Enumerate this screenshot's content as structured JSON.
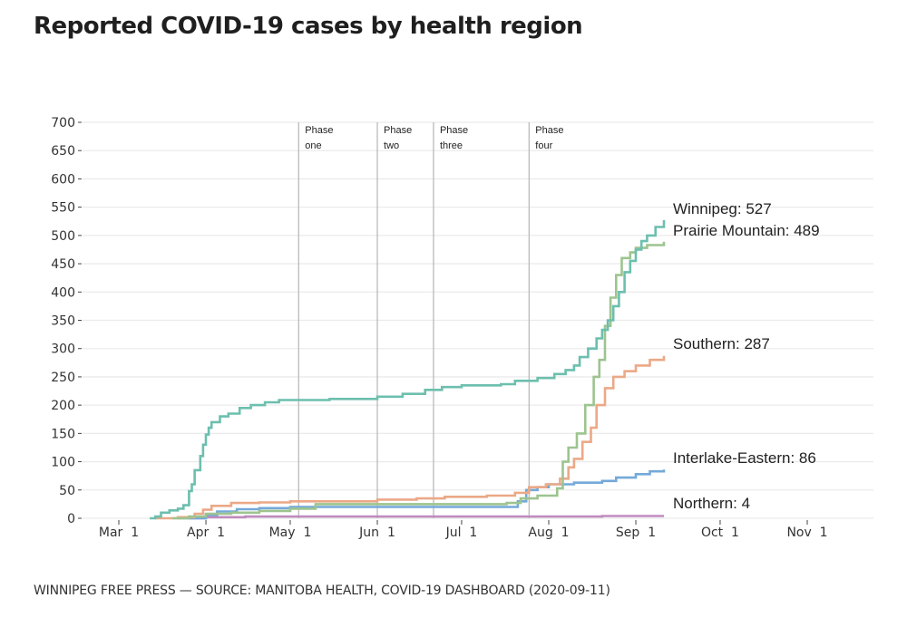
{
  "title": "Reported COVID-19 cases by health region",
  "source": "WINNIPEG FREE PRESS — SOURCE: MANITOBA HEALTH, COVID-19 DASHBOARD (2020-09-11)",
  "chart_data": {
    "type": "line",
    "title": "Reported COVID-19 cases by health region",
    "xlabel": "",
    "ylabel": "",
    "x_type": "date",
    "xlim": [
      "2020-02-20",
      "2020-11-24"
    ],
    "ylim": [
      0,
      700
    ],
    "yticks": [
      0,
      50,
      100,
      150,
      200,
      250,
      300,
      350,
      400,
      450,
      500,
      550,
      600,
      650,
      700
    ],
    "xticks": [
      {
        "date": "2020-03-01",
        "label": "Mar 1"
      },
      {
        "date": "2020-04-01",
        "label": "Apr 1"
      },
      {
        "date": "2020-05-01",
        "label": "May 1"
      },
      {
        "date": "2020-06-01",
        "label": "Jun 1"
      },
      {
        "date": "2020-07-01",
        "label": "Jul 1"
      },
      {
        "date": "2020-08-01",
        "label": "Aug 1"
      },
      {
        "date": "2020-09-01",
        "label": "Sep 1"
      },
      {
        "date": "2020-10-01",
        "label": "Oct 1"
      },
      {
        "date": "2020-11-01",
        "label": "Nov 1"
      }
    ],
    "grid": true,
    "step": true,
    "annotations": [
      {
        "date": "2020-05-04",
        "label": [
          "Phase",
          "one"
        ]
      },
      {
        "date": "2020-06-01",
        "label": [
          "Phase",
          "two"
        ]
      },
      {
        "date": "2020-06-21",
        "label": [
          "Phase",
          "three"
        ]
      },
      {
        "date": "2020-07-25",
        "label": [
          "Phase",
          "four"
        ]
      }
    ],
    "series": [
      {
        "name": "Winnipeg",
        "label": "Winnipeg: 527",
        "color": "#6cbfae",
        "points": [
          [
            "2020-03-12",
            0
          ],
          [
            "2020-03-14",
            3
          ],
          [
            "2020-03-16",
            10
          ],
          [
            "2020-03-19",
            14
          ],
          [
            "2020-03-22",
            17
          ],
          [
            "2020-03-24",
            23
          ],
          [
            "2020-03-26",
            48
          ],
          [
            "2020-03-27",
            60
          ],
          [
            "2020-03-28",
            85
          ],
          [
            "2020-03-30",
            110
          ],
          [
            "2020-03-31",
            130
          ],
          [
            "2020-04-01",
            148
          ],
          [
            "2020-04-02",
            160
          ],
          [
            "2020-04-03",
            170
          ],
          [
            "2020-04-06",
            180
          ],
          [
            "2020-04-09",
            185
          ],
          [
            "2020-04-13",
            195
          ],
          [
            "2020-04-17",
            200
          ],
          [
            "2020-04-22",
            205
          ],
          [
            "2020-04-27",
            209
          ],
          [
            "2020-05-04",
            209
          ],
          [
            "2020-05-15",
            211
          ],
          [
            "2020-06-01",
            215
          ],
          [
            "2020-06-10",
            220
          ],
          [
            "2020-06-18",
            227
          ],
          [
            "2020-06-24",
            232
          ],
          [
            "2020-07-01",
            235
          ],
          [
            "2020-07-15",
            237
          ],
          [
            "2020-07-20",
            243
          ],
          [
            "2020-07-28",
            248
          ],
          [
            "2020-08-03",
            255
          ],
          [
            "2020-08-07",
            262
          ],
          [
            "2020-08-10",
            270
          ],
          [
            "2020-08-12",
            285
          ],
          [
            "2020-08-15",
            300
          ],
          [
            "2020-08-18",
            318
          ],
          [
            "2020-08-20",
            333
          ],
          [
            "2020-08-22",
            350
          ],
          [
            "2020-08-24",
            375
          ],
          [
            "2020-08-26",
            400
          ],
          [
            "2020-08-28",
            435
          ],
          [
            "2020-08-30",
            455
          ],
          [
            "2020-09-01",
            475
          ],
          [
            "2020-09-03",
            490
          ],
          [
            "2020-09-05",
            500
          ],
          [
            "2020-09-08",
            515
          ],
          [
            "2020-09-11",
            527
          ]
        ]
      },
      {
        "name": "Prairie Mountain",
        "label": "Prairie Mountain: 489",
        "color": "#9dc48f",
        "points": [
          [
            "2020-03-20",
            0
          ],
          [
            "2020-03-26",
            3
          ],
          [
            "2020-04-01",
            8
          ],
          [
            "2020-04-10",
            10
          ],
          [
            "2020-04-20",
            13
          ],
          [
            "2020-05-01",
            17
          ],
          [
            "2020-05-10",
            25
          ],
          [
            "2020-06-01",
            25
          ],
          [
            "2020-07-10",
            25
          ],
          [
            "2020-07-17",
            27
          ],
          [
            "2020-07-22",
            35
          ],
          [
            "2020-07-28",
            40
          ],
          [
            "2020-08-04",
            53
          ],
          [
            "2020-08-06",
            100
          ],
          [
            "2020-08-08",
            125
          ],
          [
            "2020-08-11",
            150
          ],
          [
            "2020-08-14",
            200
          ],
          [
            "2020-08-17",
            250
          ],
          [
            "2020-08-19",
            280
          ],
          [
            "2020-08-21",
            340
          ],
          [
            "2020-08-23",
            390
          ],
          [
            "2020-08-25",
            430
          ],
          [
            "2020-08-27",
            460
          ],
          [
            "2020-08-30",
            470
          ],
          [
            "2020-09-01",
            478
          ],
          [
            "2020-09-05",
            483
          ],
          [
            "2020-09-11",
            489
          ]
        ]
      },
      {
        "name": "Southern",
        "label": "Southern: 287",
        "color": "#eba987",
        "points": [
          [
            "2020-03-14",
            0
          ],
          [
            "2020-03-22",
            2
          ],
          [
            "2020-03-28",
            8
          ],
          [
            "2020-03-31",
            15
          ],
          [
            "2020-04-03",
            22
          ],
          [
            "2020-04-10",
            27
          ],
          [
            "2020-04-20",
            28
          ],
          [
            "2020-05-01",
            30
          ],
          [
            "2020-06-01",
            33
          ],
          [
            "2020-06-15",
            35
          ],
          [
            "2020-06-25",
            38
          ],
          [
            "2020-07-10",
            40
          ],
          [
            "2020-07-20",
            45
          ],
          [
            "2020-07-25",
            55
          ],
          [
            "2020-07-31",
            60
          ],
          [
            "2020-08-05",
            70
          ],
          [
            "2020-08-08",
            90
          ],
          [
            "2020-08-10",
            105
          ],
          [
            "2020-08-13",
            135
          ],
          [
            "2020-08-16",
            160
          ],
          [
            "2020-08-18",
            200
          ],
          [
            "2020-08-21",
            230
          ],
          [
            "2020-08-24",
            250
          ],
          [
            "2020-08-28",
            260
          ],
          [
            "2020-09-01",
            270
          ],
          [
            "2020-09-06",
            280
          ],
          [
            "2020-09-11",
            287
          ]
        ]
      },
      {
        "name": "Interlake-Eastern",
        "label": "Interlake-Eastern: 86",
        "color": "#74a9d8",
        "points": [
          [
            "2020-03-22",
            0
          ],
          [
            "2020-04-01",
            6
          ],
          [
            "2020-04-05",
            12
          ],
          [
            "2020-04-12",
            16
          ],
          [
            "2020-04-20",
            18
          ],
          [
            "2020-05-01",
            20
          ],
          [
            "2020-06-01",
            20
          ],
          [
            "2020-07-18",
            20
          ],
          [
            "2020-07-21",
            30
          ],
          [
            "2020-07-24",
            50
          ],
          [
            "2020-07-28",
            55
          ],
          [
            "2020-08-01",
            60
          ],
          [
            "2020-08-10",
            63
          ],
          [
            "2020-08-20",
            66
          ],
          [
            "2020-08-25",
            72
          ],
          [
            "2020-09-01",
            78
          ],
          [
            "2020-09-06",
            83
          ],
          [
            "2020-09-11",
            86
          ]
        ]
      },
      {
        "name": "Northern",
        "label": "Northern: 4",
        "color": "#c08bbf",
        "points": [
          [
            "2020-03-26",
            0
          ],
          [
            "2020-04-01",
            2
          ],
          [
            "2020-04-15",
            3
          ],
          [
            "2020-08-20",
            4
          ],
          [
            "2020-09-11",
            4
          ]
        ]
      }
    ],
    "legend": "direct-labels-at-line-ends"
  }
}
